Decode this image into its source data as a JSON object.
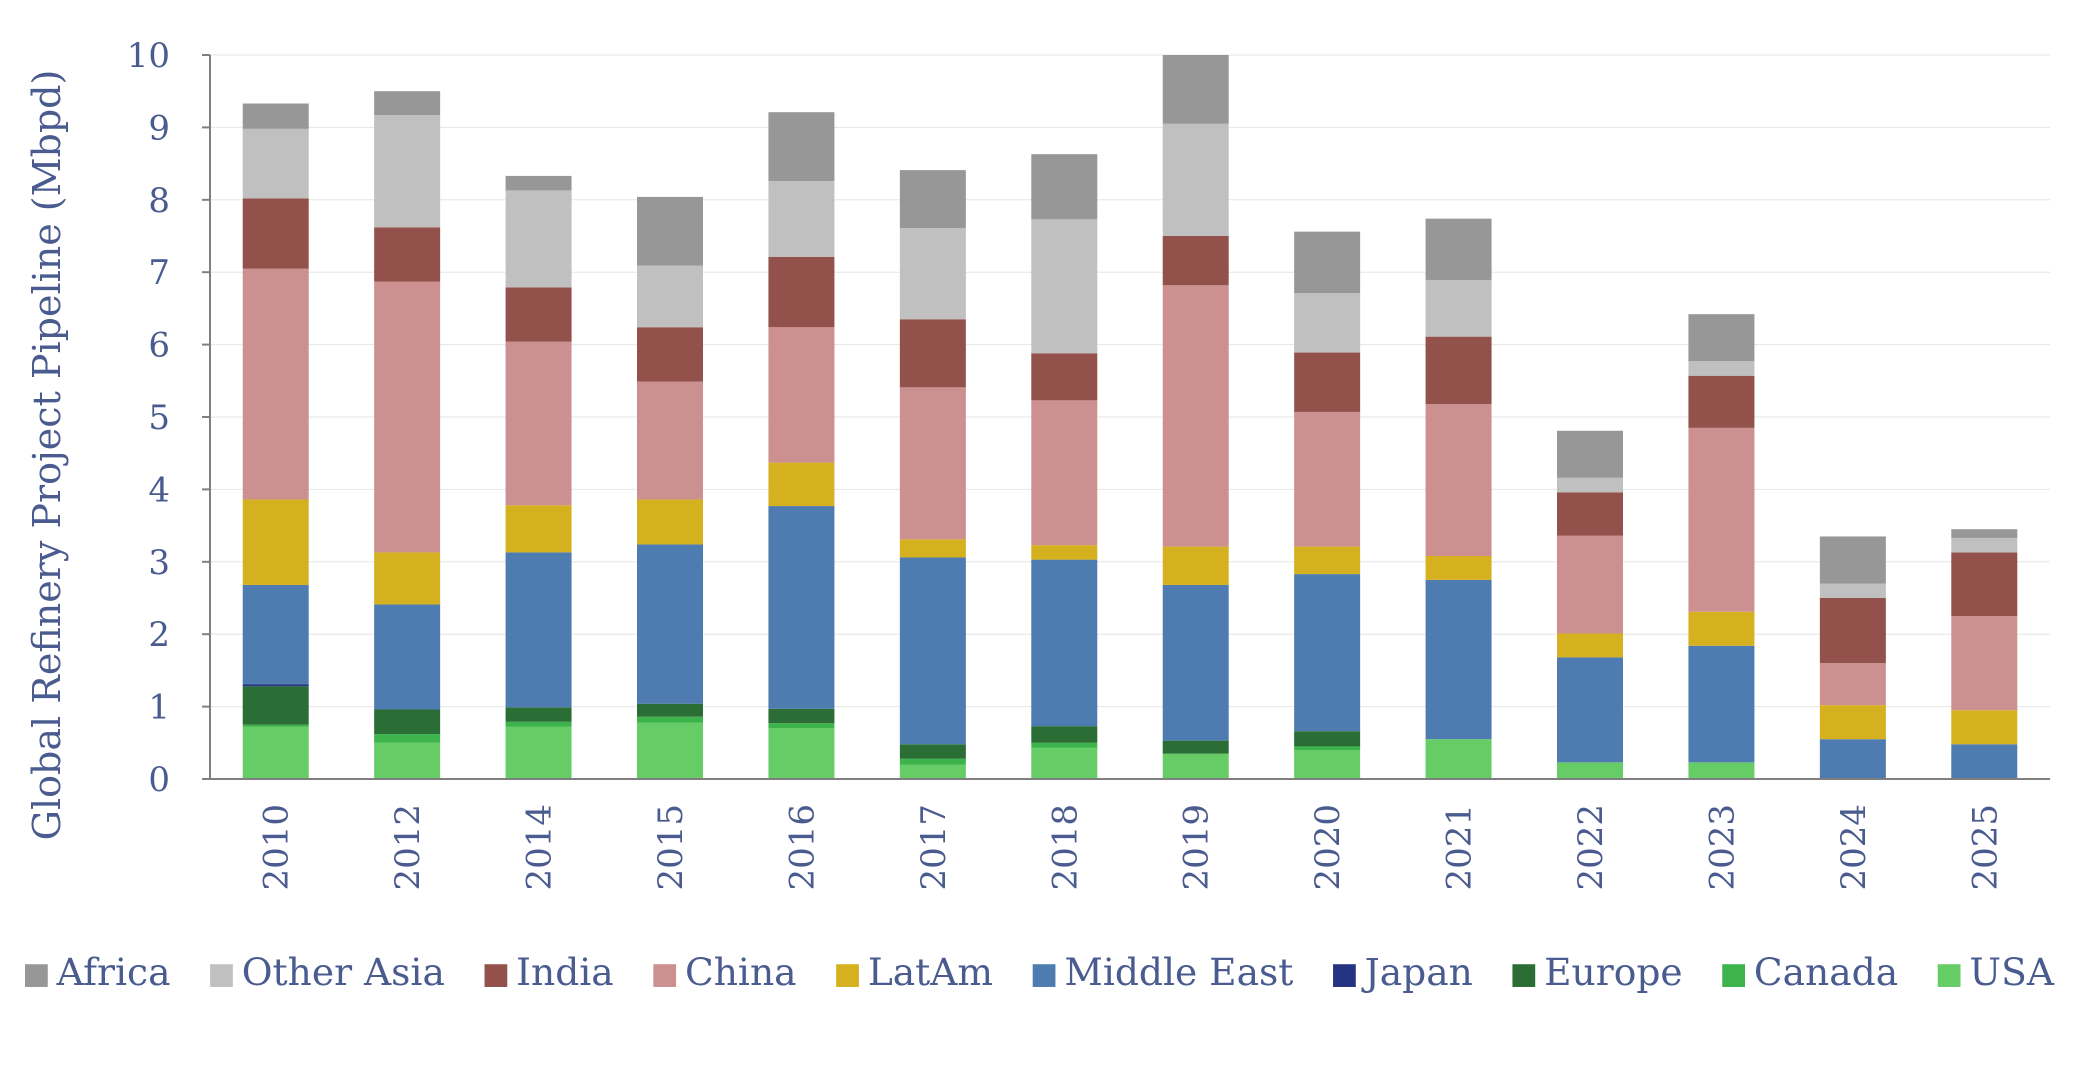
{
  "chart_data": {
    "type": "bar",
    "stacked": true,
    "title": "",
    "xlabel": "",
    "ylabel": "Global Refinery Project Pipeline (Mbpd)",
    "ylim": [
      0,
      10
    ],
    "yticks": [
      "0",
      "1",
      "2",
      "3",
      "4",
      "5",
      "6",
      "7",
      "8",
      "9",
      "10"
    ],
    "grid": true,
    "legend_position": "bottom",
    "categories": [
      "2010",
      "2012",
      "2014",
      "2015",
      "2016",
      "2017",
      "2018",
      "2019",
      "2020",
      "2021",
      "2022",
      "2023",
      "2024",
      "2025"
    ],
    "series": [
      {
        "name": "USA",
        "color": "#66cc66",
        "values": [
          0.72,
          0.5,
          0.72,
          0.78,
          0.7,
          0.2,
          0.43,
          0.35,
          0.4,
          0.55,
          0.23,
          0.23,
          0.0,
          0.0
        ]
      },
      {
        "name": "Canada",
        "color": "#3cb44b",
        "values": [
          0.03,
          0.12,
          0.07,
          0.08,
          0.07,
          0.08,
          0.07,
          0.0,
          0.05,
          0.0,
          0.0,
          0.0,
          0.0,
          0.0
        ]
      },
      {
        "name": "Europe",
        "color": "#2a6e36",
        "values": [
          0.53,
          0.34,
          0.2,
          0.18,
          0.2,
          0.2,
          0.23,
          0.18,
          0.21,
          0.0,
          0.0,
          0.0,
          0.0,
          0.0
        ]
      },
      {
        "name": "Japan",
        "color": "#243482",
        "values": [
          0.03,
          0.0,
          0.0,
          0.0,
          0.0,
          0.0,
          0.0,
          0.0,
          0.0,
          0.0,
          0.0,
          0.0,
          0.0,
          0.0
        ]
      },
      {
        "name": "Middle East",
        "color": "#4f7cb0",
        "values": [
          1.37,
          1.45,
          2.14,
          2.2,
          2.8,
          2.58,
          2.3,
          2.15,
          2.17,
          2.2,
          1.45,
          1.61,
          0.55,
          0.48
        ]
      },
      {
        "name": "LatAm",
        "color": "#d6b11f",
        "values": [
          1.18,
          0.72,
          0.65,
          0.62,
          0.6,
          0.25,
          0.2,
          0.53,
          0.38,
          0.33,
          0.33,
          0.47,
          0.47,
          0.47
        ]
      },
      {
        "name": "China",
        "color": "#cc9090",
        "values": [
          3.19,
          3.74,
          2.26,
          1.63,
          1.87,
          2.1,
          2.0,
          3.61,
          1.86,
          2.1,
          1.35,
          2.54,
          0.58,
          1.3
        ]
      },
      {
        "name": "India",
        "color": "#92514a",
        "values": [
          0.97,
          0.75,
          0.75,
          0.75,
          0.97,
          0.94,
          0.65,
          0.68,
          0.82,
          0.93,
          0.6,
          0.72,
          0.9,
          0.88
        ]
      },
      {
        "name": "Other Asia",
        "color": "#c0c0c0",
        "values": [
          0.96,
          1.55,
          1.34,
          0.85,
          1.05,
          1.26,
          1.85,
          1.55,
          0.82,
          0.78,
          0.2,
          0.2,
          0.2,
          0.2
        ]
      },
      {
        "name": "Africa",
        "color": "#979797",
        "values": [
          0.35,
          0.33,
          0.2,
          0.95,
          0.95,
          0.8,
          0.9,
          0.95,
          0.85,
          0.85,
          0.65,
          0.65,
          0.65,
          0.12
        ]
      }
    ],
    "legend_order": [
      "Africa",
      "Other Asia",
      "India",
      "China",
      "LatAm",
      "Middle East",
      "Japan",
      "Europe",
      "Canada",
      "USA"
    ]
  }
}
